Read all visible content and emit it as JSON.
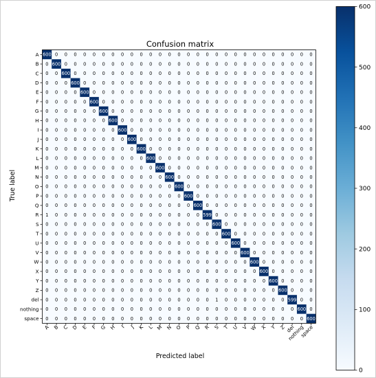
{
  "chart_data": {
    "type": "heatmap",
    "title": "Confusion matrix",
    "xlabel": "Predicted label",
    "ylabel": "True label",
    "labels": [
      "A",
      "B",
      "C",
      "D",
      "E",
      "F",
      "G",
      "H",
      "I",
      "J",
      "K",
      "L",
      "M",
      "N",
      "O",
      "P",
      "Q",
      "R",
      "S",
      "T",
      "U",
      "V",
      "W",
      "X",
      "Y",
      "Z",
      "del",
      "nothing",
      "space"
    ],
    "diagonal": [
      600,
      600,
      600,
      600,
      600,
      600,
      600,
      600,
      600,
      600,
      600,
      600,
      600,
      600,
      600,
      600,
      600,
      599,
      600,
      600,
      600,
      600,
      600,
      600,
      600,
      600,
      599,
      600,
      600
    ],
    "off_diagonal": [
      {
        "true": "R",
        "predicted": "A",
        "value": 1
      },
      {
        "true": "del",
        "predicted": "S",
        "value": 1
      }
    ],
    "colorbar": {
      "range": [
        0,
        600
      ],
      "ticks": [
        0,
        100,
        200,
        300,
        400,
        500,
        600
      ],
      "colormap": [
        "#f7fbff",
        "#deebf7",
        "#c6dbef",
        "#9ecae1",
        "#6baed6",
        "#4292c6",
        "#2171b5",
        "#08519c",
        "#08306b"
      ]
    }
  }
}
